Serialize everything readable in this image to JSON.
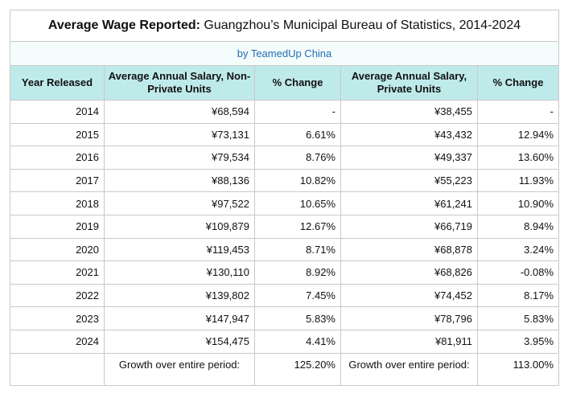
{
  "title": {
    "bold": "Average Wage Reported:",
    "rest": " Guangzhou’s Municipal Bureau of Statistics, 2014-2024"
  },
  "subtitle": "by TeamedUp China",
  "headers": {
    "year": "Year Released",
    "nonprivate_salary": "Average Annual Salary, Non-Private Units",
    "nonprivate_change": "% Change",
    "private_salary": "Average Annual Salary, Private Units",
    "private_change": "% Change"
  },
  "rows": [
    {
      "year": "2014",
      "np_salary": "¥68,594",
      "np_change": "-",
      "p_salary": "¥38,455",
      "p_change": "-"
    },
    {
      "year": "2015",
      "np_salary": "¥73,131",
      "np_change": "6.61%",
      "p_salary": "¥43,432",
      "p_change": "12.94%"
    },
    {
      "year": "2016",
      "np_salary": "¥79,534",
      "np_change": "8.76%",
      "p_salary": "¥49,337",
      "p_change": "13.60%"
    },
    {
      "year": "2017",
      "np_salary": "¥88,136",
      "np_change": "10.82%",
      "p_salary": "¥55,223",
      "p_change": "11.93%"
    },
    {
      "year": "2018",
      "np_salary": "¥97,522",
      "np_change": "10.65%",
      "p_salary": "¥61,241",
      "p_change": "10.90%"
    },
    {
      "year": "2019",
      "np_salary": "¥109,879",
      "np_change": "12.67%",
      "p_salary": "¥66,719",
      "p_change": "8.94%"
    },
    {
      "year": "2020",
      "np_salary": "¥119,453",
      "np_change": "8.71%",
      "p_salary": "¥68,878",
      "p_change": "3.24%"
    },
    {
      "year": "2021",
      "np_salary": "¥130,110",
      "np_change": "8.92%",
      "p_salary": "¥68,826",
      "p_change": "-0.08%"
    },
    {
      "year": "2022",
      "np_salary": "¥139,802",
      "np_change": "7.45%",
      "p_salary": "¥74,452",
      "p_change": "8.17%"
    },
    {
      "year": "2023",
      "np_salary": "¥147,947",
      "np_change": "5.83%",
      "p_salary": "¥78,796",
      "p_change": "5.83%"
    },
    {
      "year": "2024",
      "np_salary": "¥154,475",
      "np_change": "4.41%",
      "p_salary": "¥81,911",
      "p_change": "3.95%"
    }
  ],
  "footer": {
    "np_label": "Growth over entire period:",
    "np_value": "125.20%",
    "p_label": "Growth over entire period:",
    "p_value": "113.00%"
  }
}
